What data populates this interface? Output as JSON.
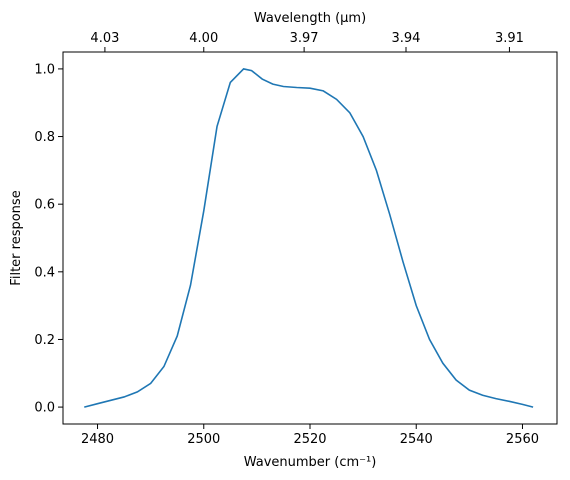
{
  "chart_data": {
    "type": "line",
    "xlabel": "Wavenumber (cm⁻¹)",
    "ylabel": "Filter response",
    "top_xlabel": "Wavelength (μm)",
    "xlim": [
      2473.5,
      2566.5
    ],
    "ylim": [
      -0.05,
      1.05
    ],
    "x_ticks": [
      2480,
      2500,
      2520,
      2540,
      2560
    ],
    "x_tick_labels": [
      "2480",
      "2500",
      "2520",
      "2540",
      "2560"
    ],
    "y_ticks": [
      0.0,
      0.2,
      0.4,
      0.6,
      0.8,
      1.0
    ],
    "y_tick_labels": [
      "0.0",
      "0.2",
      "0.4",
      "0.6",
      "0.8",
      "1.0"
    ],
    "top_ticks": [
      4.03,
      4.0,
      3.97,
      3.94,
      3.91
    ],
    "top_tick_labels": [
      "4.03",
      "4.00",
      "3.97",
      "3.94",
      "3.91"
    ],
    "grid": false,
    "line_color": "#1f77b4",
    "series": [
      {
        "x": [
          2477.5,
          2480,
          2482.5,
          2485,
          2487.5,
          2490,
          2492.5,
          2495,
          2497.5,
          2500,
          2502.5,
          2505,
          2507.5,
          2509,
          2511,
          2513,
          2515,
          2517.5,
          2520,
          2522.5,
          2525,
          2527.5,
          2530,
          2532.5,
          2535,
          2537.5,
          2540,
          2542.5,
          2545,
          2547.5,
          2550,
          2552.5,
          2555,
          2557.5,
          2560,
          2562
        ],
        "y": [
          0.0,
          0.01,
          0.02,
          0.03,
          0.045,
          0.07,
          0.12,
          0.21,
          0.36,
          0.58,
          0.83,
          0.96,
          1.0,
          0.995,
          0.97,
          0.955,
          0.948,
          0.945,
          0.943,
          0.935,
          0.91,
          0.87,
          0.8,
          0.7,
          0.57,
          0.43,
          0.3,
          0.2,
          0.13,
          0.08,
          0.05,
          0.035,
          0.025,
          0.017,
          0.008,
          0.0
        ]
      }
    ]
  }
}
